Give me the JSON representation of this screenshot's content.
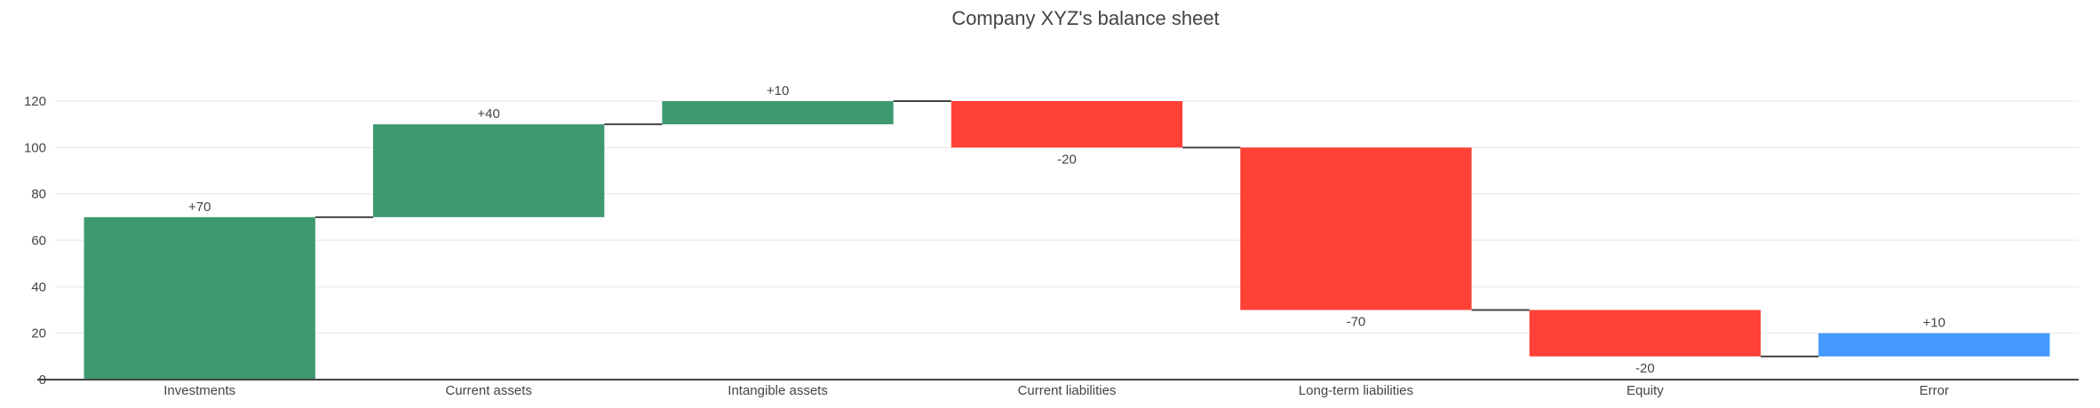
{
  "chart_data": {
    "type": "waterfall",
    "title": "Company XYZ's balance sheet",
    "xlabel": "",
    "ylabel": "",
    "categories": [
      "Investments",
      "Current assets",
      "Intangible assets",
      "Current liabilities",
      "Long-term liabilities",
      "Equity",
      "Error"
    ],
    "values": [
      70,
      40,
      10,
      -20,
      -70,
      -20,
      10
    ],
    "text_labels": [
      "+70",
      "+40",
      "+10",
      "-20",
      "-70",
      "-20",
      "+10"
    ],
    "measure": [
      "relative",
      "relative",
      "relative",
      "relative",
      "relative",
      "relative",
      "relative"
    ],
    "ylim": [
      0,
      120
    ],
    "yticks": [
      0,
      20,
      40,
      60,
      80,
      100,
      120
    ],
    "grid": true,
    "colors": {
      "increasing": "#3d9970",
      "decreasing": "#ff4136",
      "last": "#4499ff",
      "connector": "#444444",
      "grid": "#e6e6e6",
      "text": "#444444"
    }
  }
}
